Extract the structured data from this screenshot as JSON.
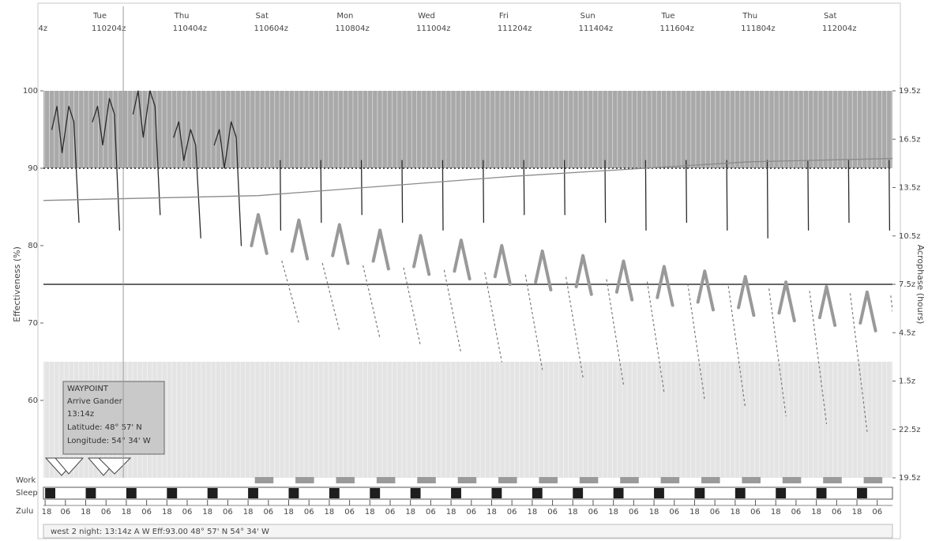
{
  "chart_data": {
    "type": "line",
    "y_label": "Effectiveness (%)",
    "y2_label": "Acrophase (hours)",
    "xlim": [
      -7,
      495
    ],
    "ylim": [
      50,
      100
    ],
    "y2lim": [
      -4.5,
      19.5
    ],
    "yticks": [
      100,
      90,
      80,
      70,
      60
    ],
    "y2ticks": [
      {
        "value": 19.5,
        "label": "19.5z"
      },
      {
        "value": 16.5,
        "label": "16.5z"
      },
      {
        "value": 13.5,
        "label": "13.5z"
      },
      {
        "value": 10.5,
        "label": "10.5z"
      },
      {
        "value": 7.5,
        "label": "7.5z"
      },
      {
        "value": 4.5,
        "label": "4.5z"
      },
      {
        "value": 1.5,
        "label": "1.5z"
      },
      {
        "value": -1.5,
        "label": "22.5z"
      },
      {
        "value": -4.5,
        "label": "19.5z"
      }
    ],
    "xticks": [
      {
        "value": -20,
        "label": "4z"
      },
      {
        "value": 28,
        "day": "Tue",
        "label": "110204z"
      },
      {
        "value": 76,
        "day": "Thu",
        "label": "110404z"
      },
      {
        "value": 124,
        "day": "Sat",
        "label": "110604z"
      },
      {
        "value": 172,
        "day": "Mon",
        "label": "110804z"
      },
      {
        "value": 220,
        "day": "Wed",
        "label": "111004z"
      },
      {
        "value": 268,
        "day": "Fri",
        "label": "111204z"
      },
      {
        "value": 316,
        "day": "Sun",
        "label": "111404z"
      },
      {
        "value": 364,
        "day": "Tue",
        "label": "111604z"
      },
      {
        "value": 412,
        "day": "Thu",
        "label": "111804z"
      },
      {
        "value": 460,
        "day": "Sat",
        "label": "112004z"
      }
    ],
    "zulu_label": "Zulu",
    "zulu_ticks": [
      {
        "value": -6,
        "label": "18"
      },
      {
        "value": 6,
        "label": "06"
      },
      {
        "value": 18,
        "label": "18"
      },
      {
        "value": 30,
        "label": "06"
      },
      {
        "value": 42,
        "label": "18"
      },
      {
        "value": 54,
        "label": "06"
      },
      {
        "value": 66,
        "label": "18"
      },
      {
        "value": 78,
        "label": "06"
      },
      {
        "value": 90,
        "label": "18"
      },
      {
        "value": 102,
        "label": "06"
      },
      {
        "value": 114,
        "label": "18"
      },
      {
        "value": 126,
        "label": "06"
      },
      {
        "value": 138,
        "label": "18"
      },
      {
        "value": 150,
        "label": "06"
      },
      {
        "value": 162,
        "label": "18"
      },
      {
        "value": 174,
        "label": "06"
      },
      {
        "value": 186,
        "label": "18"
      },
      {
        "value": 198,
        "label": "06"
      },
      {
        "value": 210,
        "label": "18"
      },
      {
        "value": 222,
        "label": "06"
      },
      {
        "value": 234,
        "label": "18"
      },
      {
        "value": 246,
        "label": "06"
      },
      {
        "value": 258,
        "label": "18"
      },
      {
        "value": 270,
        "label": "06"
      },
      {
        "value": 282,
        "label": "18"
      },
      {
        "value": 294,
        "label": "06"
      },
      {
        "value": 306,
        "label": "18"
      },
      {
        "value": 318,
        "label": "06"
      },
      {
        "value": 330,
        "label": "18"
      },
      {
        "value": 342,
        "label": "06"
      },
      {
        "value": 354,
        "label": "18"
      },
      {
        "value": 366,
        "label": "06"
      },
      {
        "value": 378,
        "label": "18"
      },
      {
        "value": 390,
        "label": "06"
      },
      {
        "value": 402,
        "label": "18"
      },
      {
        "value": 414,
        "label": "06"
      },
      {
        "value": 426,
        "label": "18"
      },
      {
        "value": 438,
        "label": "06"
      },
      {
        "value": 450,
        "label": "18"
      },
      {
        "value": 462,
        "label": "06"
      },
      {
        "value": 474,
        "label": "18"
      },
      {
        "value": 486,
        "label": "06"
      }
    ],
    "bands": [
      {
        "from": 90,
        "to": 100,
        "color": "#a9a9a9"
      },
      {
        "from": 50,
        "to": 65,
        "color": "#e4e4e4"
      }
    ],
    "reference_lines": [
      {
        "value": 90,
        "style": "dotted",
        "color": "#222222"
      },
      {
        "value": 75,
        "style": "solid",
        "color": "#333333"
      }
    ],
    "series": [
      {
        "style": "solid",
        "color": "#2a2a2a",
        "x": [
          -2,
          1,
          4,
          8,
          11,
          14,
          null,
          22,
          25,
          28,
          32,
          35,
          38,
          null,
          46,
          49,
          52,
          56,
          59,
          62,
          null,
          70,
          73,
          76,
          80,
          83,
          86,
          null,
          94,
          97,
          100,
          104,
          107,
          110,
          null,
          133,
          133.3,
          null,
          157,
          157.3,
          null,
          181,
          181.3,
          null,
          205,
          205.3,
          null,
          229,
          229.3,
          null,
          253,
          253.3,
          null,
          277,
          277.3,
          null,
          301,
          301.3,
          null,
          325,
          325.3,
          null,
          349,
          349.3,
          null,
          373,
          373.3,
          null,
          397,
          397.3,
          null,
          421,
          421.3,
          null,
          445,
          445.3,
          null,
          469,
          469.3,
          null,
          493,
          493.3
        ],
        "values": [
          95,
          98,
          92,
          98,
          96,
          83,
          null,
          96,
          98,
          93,
          99,
          97,
          82,
          null,
          97,
          100,
          94,
          100,
          98,
          84,
          null,
          94,
          96,
          91,
          95,
          93,
          81,
          null,
          93,
          95,
          90,
          96,
          94,
          80,
          null,
          91,
          82,
          null,
          91,
          83,
          null,
          91,
          84,
          null,
          91,
          83,
          null,
          91,
          82,
          null,
          91,
          83,
          null,
          91,
          84,
          null,
          91,
          84,
          null,
          91,
          83,
          null,
          91,
          82,
          null,
          91,
          83,
          null,
          91,
          82,
          null,
          91,
          81,
          null,
          91,
          82,
          null,
          91,
          83,
          null,
          91,
          82
        ]
      },
      {
        "style": "dashed",
        "color": "#777777",
        "x": [
          134,
          144,
          null,
          158,
          168,
          null,
          182,
          192,
          null,
          206,
          216,
          null,
          230,
          240,
          null,
          254,
          264,
          null,
          278,
          288,
          null,
          302,
          312,
          null,
          326,
          336,
          null,
          350,
          360,
          null,
          374,
          384,
          null,
          398,
          408,
          null,
          422,
          432,
          null,
          446,
          456,
          null,
          470,
          480,
          null,
          494,
          504
        ],
        "values": [
          78,
          70,
          null,
          77.7,
          69,
          null,
          77.4,
          68,
          null,
          77.1,
          67,
          null,
          76.8,
          66,
          null,
          76.5,
          65,
          null,
          76.2,
          64,
          null,
          75.9,
          63,
          null,
          75.6,
          62,
          null,
          75.3,
          61,
          null,
          75,
          60,
          null,
          74.7,
          59,
          null,
          74.4,
          58,
          null,
          74.1,
          57,
          null,
          73.8,
          56,
          null,
          73.5,
          55
        ]
      },
      {
        "style": "thick",
        "color": "#999999",
        "x": [
          116,
          120,
          125,
          null,
          140,
          144,
          149,
          null,
          164,
          168,
          173,
          null,
          188,
          192,
          197,
          null,
          212,
          216,
          221,
          null,
          236,
          240,
          245,
          null,
          260,
          264,
          269,
          null,
          284,
          288,
          293,
          null,
          308,
          312,
          317,
          null,
          332,
          336,
          341,
          null,
          356,
          360,
          365,
          null,
          380,
          384,
          389,
          null,
          404,
          408,
          413,
          null,
          428,
          432,
          437,
          null,
          452,
          456,
          461,
          null,
          476,
          480,
          485
        ],
        "values": [
          80,
          84,
          79,
          null,
          79.3,
          83.3,
          78.3,
          null,
          78.7,
          82.7,
          77.7,
          null,
          78,
          82,
          77,
          null,
          77.3,
          81.3,
          76.3,
          null,
          76.7,
          80.7,
          75.7,
          null,
          76,
          80,
          75,
          null,
          75.3,
          79.3,
          74.3,
          null,
          74.7,
          78.7,
          73.7,
          null,
          74,
          78,
          73,
          null,
          73.3,
          77.3,
          72.3,
          null,
          72.7,
          76.7,
          71.7,
          null,
          72,
          76,
          71,
          null,
          71.3,
          75.3,
          70.3,
          null,
          70.7,
          74.7,
          69.7,
          null,
          70,
          74,
          69
        ]
      },
      {
        "style": "solid",
        "color": "#8a8a8a",
        "axis": "y2",
        "x": [
          -7,
          120,
          271,
          411,
          495
        ],
        "values": [
          12.7,
          13.0,
          14.2,
          15.1,
          15.3
        ]
      }
    ],
    "work_label": "Work",
    "work_periods": [
      [
        118,
        129
      ],
      [
        142,
        153
      ],
      [
        166,
        177
      ],
      [
        190,
        201
      ],
      [
        214,
        225
      ],
      [
        238,
        249
      ],
      [
        262,
        273
      ],
      [
        286,
        297
      ],
      [
        310,
        321
      ],
      [
        334,
        345
      ],
      [
        358,
        369
      ],
      [
        382,
        393
      ],
      [
        406,
        417
      ],
      [
        430,
        441
      ],
      [
        454,
        465
      ],
      [
        478,
        489
      ]
    ],
    "sleep_label": "Sleep",
    "sleep_periods": [
      [
        -6,
        0
      ],
      [
        18,
        24
      ],
      [
        42,
        48
      ],
      [
        66,
        72
      ],
      [
        90,
        96
      ],
      [
        114,
        120
      ],
      [
        138,
        144
      ],
      [
        162,
        168
      ],
      [
        186,
        192
      ],
      [
        210,
        216
      ],
      [
        234,
        240
      ],
      [
        258,
        264
      ],
      [
        282,
        288
      ],
      [
        306,
        312
      ],
      [
        330,
        336
      ],
      [
        354,
        360
      ],
      [
        378,
        384
      ],
      [
        402,
        408
      ],
      [
        426,
        432
      ],
      [
        450,
        456
      ],
      [
        474,
        480
      ]
    ],
    "cursor_x": 40.2,
    "tooltip": {
      "title": "WAYPOINT",
      "lines": [
        "Arrive Gander",
        "13:14z",
        "Latitude: 48° 57' N",
        "Longitude: 54° 34' W"
      ]
    },
    "status": "west 2 night: 13:14z A W Eff:93.00 48° 57' N 54° 34' W"
  }
}
